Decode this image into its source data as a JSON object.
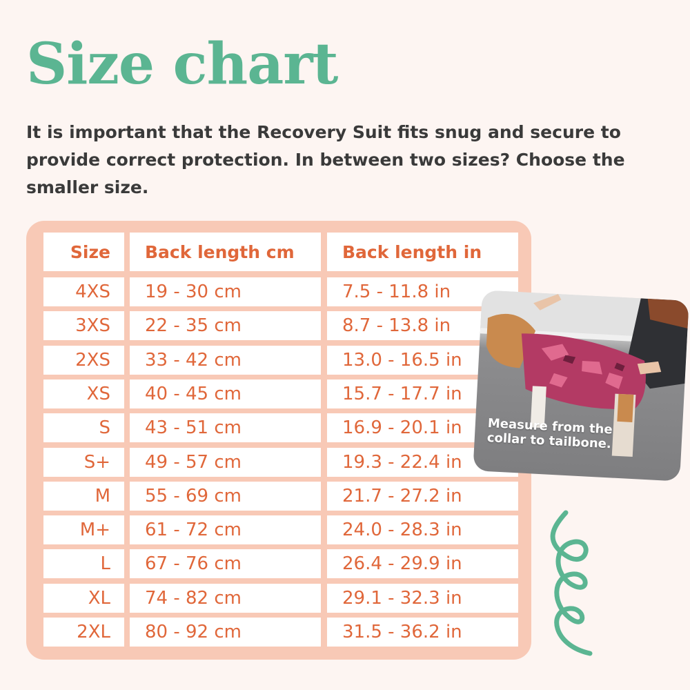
{
  "title": "Size chart",
  "intro": "It is important that the Recovery Suit fits snug and secure to provide correct protection. In between two sizes? Choose the smaller size.",
  "table": {
    "headers": [
      "Size",
      "Back length cm",
      "Back length in"
    ],
    "rows": [
      [
        "4XS",
        "19 - 30 cm",
        "7.5 - 11.8 in"
      ],
      [
        "3XS",
        "22 - 35 cm",
        "8.7 - 13.8 in"
      ],
      [
        "2XS",
        "33 - 42 cm",
        "13.0 - 16.5 in"
      ],
      [
        "XS",
        "40 - 45 cm",
        "15.7 - 17.7 in"
      ],
      [
        "S",
        "43 - 51 cm",
        "16.9 - 20.1 in"
      ],
      [
        "S+",
        "49 - 57 cm",
        "19.3 - 22.4 in"
      ],
      [
        "M",
        "55 - 69 cm",
        "21.7 - 27.2 in"
      ],
      [
        "M+",
        "61 - 72 cm",
        "24.0 - 28.3 in"
      ],
      [
        "L",
        "67 - 76 cm",
        "26.4 - 29.9 in"
      ],
      [
        "XL",
        "74 - 82 cm",
        "29.1 - 32.3 in"
      ],
      [
        "2XL",
        "80 - 92 cm",
        "31.5 - 36.2 in"
      ]
    ]
  },
  "photo": {
    "caption_line1": "Measure from the",
    "caption_line2": "collar to tailbone."
  },
  "colors": {
    "title": "#5bb592",
    "text": "#e0673a",
    "table_bg": "#f8c9b6",
    "page_bg": "#fdf5f2",
    "squiggle": "#5bb592"
  }
}
